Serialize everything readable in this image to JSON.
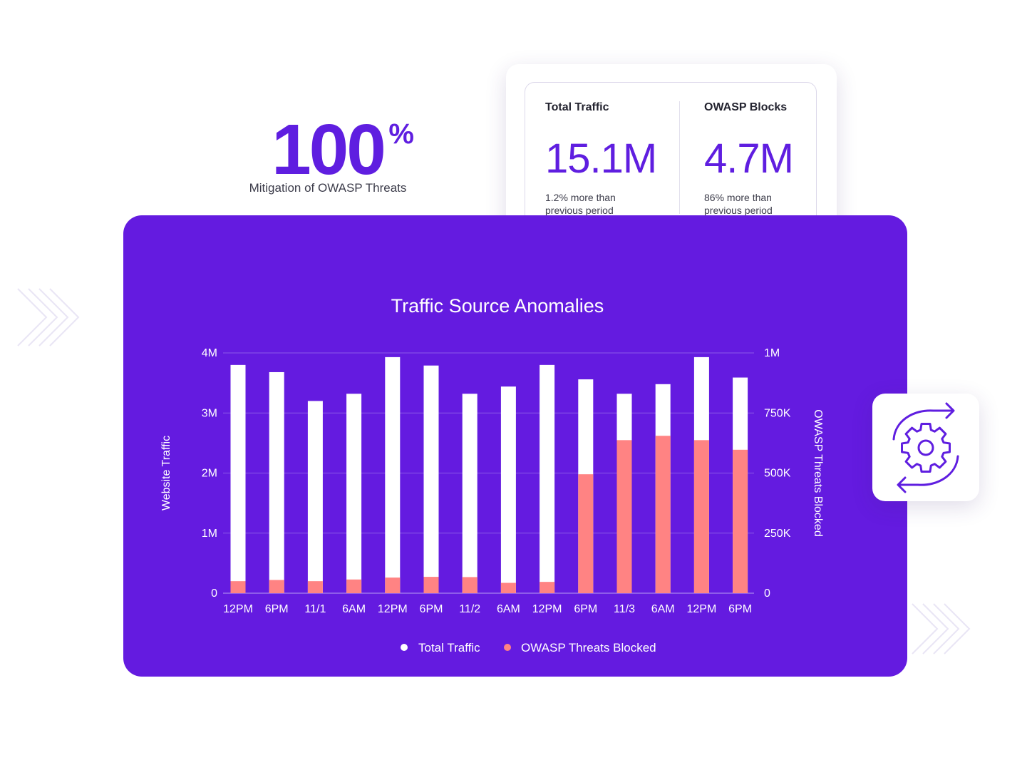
{
  "hero": {
    "number": "100",
    "suffix": "%",
    "caption": "Mitigation of OWASP Threats"
  },
  "stats": [
    {
      "label": "Total Traffic",
      "value": "15.1M",
      "note": "1.2% more than previous period"
    },
    {
      "label": "OWASP Blocks",
      "value": "4.7M",
      "note": "86% more than previous period"
    }
  ],
  "icons": {
    "decoration": "chevrons-right-icon",
    "gear": "gear-sync-icon"
  },
  "colors": {
    "accent": "#5f1ee0",
    "chart_bg": "#641be0",
    "total_bar": "#ffffff",
    "threat_bar": "#ff8383"
  },
  "chart_data": {
    "type": "bar",
    "title": "Traffic Source Anomalies",
    "ylabel": "Website Traffic",
    "y2label": "OWASP Threats Blocked",
    "categories": [
      "12PM",
      "6PM",
      "11/1",
      "6AM",
      "12PM",
      "6PM",
      "11/2",
      "6AM",
      "12PM",
      "6PM",
      "11/3",
      "6AM",
      "12PM",
      "6PM"
    ],
    "ylim": [
      0,
      4000000
    ],
    "y2lim": [
      0,
      1000000
    ],
    "yticks": [
      "0",
      "1M",
      "2M",
      "3M",
      "4M"
    ],
    "y2ticks": [
      "0",
      "250K",
      "500K",
      "750K",
      "1M"
    ],
    "grid": true,
    "legend": "bottom",
    "series": [
      {
        "name": "Total Traffic",
        "axis": "left",
        "color": "#ffffff",
        "values": [
          3800000,
          3680000,
          3200000,
          3320000,
          3930000,
          3790000,
          3320000,
          3440000,
          3800000,
          3560000,
          3320000,
          3480000,
          3930000,
          3590000
        ]
      },
      {
        "name": "OWASP Threats Blocked",
        "axis": "right",
        "color": "#ff8383",
        "values": [
          50000,
          55000,
          50000,
          57000,
          65000,
          68000,
          67000,
          43000,
          47000,
          495000,
          637000,
          655000,
          637000,
          597000
        ]
      }
    ]
  }
}
